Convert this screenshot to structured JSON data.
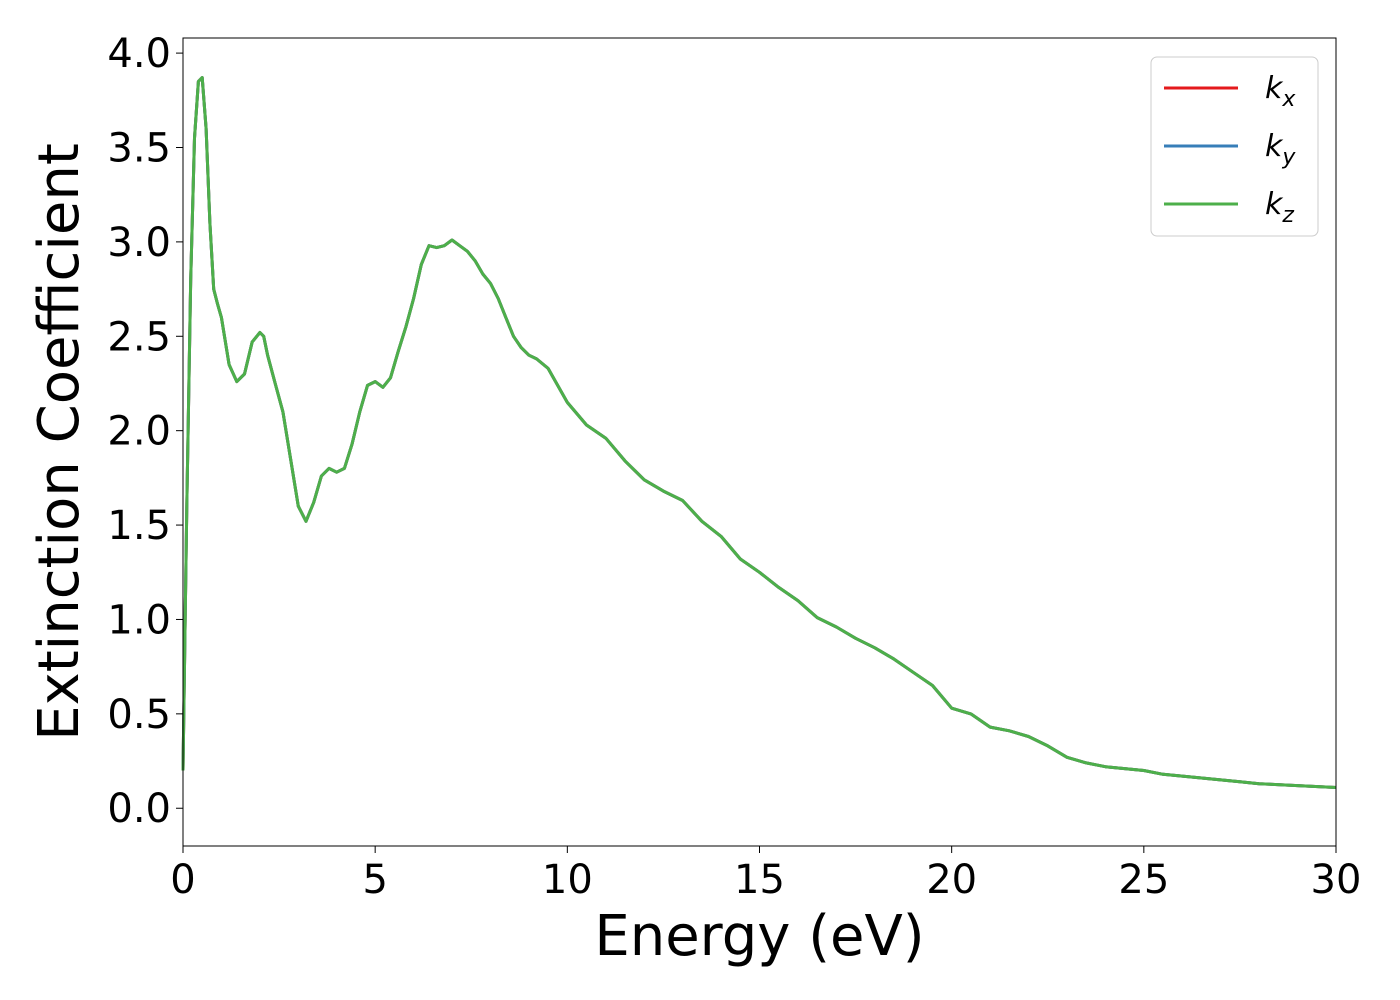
{
  "chart_data": {
    "type": "line",
    "title": "",
    "xlabel": "Energy (eV)",
    "ylabel": "Extinction Coefficient",
    "xlim": [
      0,
      30
    ],
    "ylim": [
      -0.2,
      4.08
    ],
    "xticks": [
      0,
      5,
      10,
      15,
      20,
      25,
      30
    ],
    "xtick_labels": [
      "0",
      "5",
      "10",
      "15",
      "20",
      "25",
      "30"
    ],
    "yticks": [
      0.0,
      0.5,
      1.0,
      1.5,
      2.0,
      2.5,
      3.0,
      3.5,
      4.0
    ],
    "ytick_labels": [
      "0.0",
      "0.5",
      "1.0",
      "1.5",
      "2.0",
      "2.5",
      "3.0",
      "3.5",
      "4.0"
    ],
    "grid": false,
    "legend_position": "top-right",
    "series": [
      {
        "name": "k",
        "subscript": "x",
        "color": "#e41a1c",
        "x": [
          0,
          0.1,
          0.2,
          0.3,
          0.4,
          0.5,
          0.6,
          0.7,
          0.8,
          0.9,
          1.0,
          1.2,
          1.4,
          1.6,
          1.8,
          2.0,
          2.1,
          2.2,
          2.4,
          2.6,
          2.8,
          3.0,
          3.2,
          3.4,
          3.6,
          3.8,
          4.0,
          4.2,
          4.4,
          4.6,
          4.8,
          5.0,
          5.2,
          5.4,
          5.6,
          5.8,
          6.0,
          6.2,
          6.4,
          6.6,
          6.8,
          7.0,
          7.2,
          7.4,
          7.6,
          7.8,
          8.0,
          8.2,
          8.4,
          8.6,
          8.8,
          9.0,
          9.2,
          9.5,
          10.0,
          10.5,
          11.0,
          11.5,
          12.0,
          12.5,
          13.0,
          13.5,
          14.0,
          14.5,
          15.0,
          15.5,
          16.0,
          16.5,
          17.0,
          17.5,
          18.0,
          18.5,
          19.0,
          19.5,
          20.0,
          20.5,
          21.0,
          21.5,
          22.0,
          22.5,
          23.0,
          23.5,
          24.0,
          24.5,
          25.0,
          25.5,
          26.0,
          26.5,
          27.0,
          27.5,
          28.0,
          29.0,
          30.0
        ],
        "y": [
          0.2,
          1.6,
          2.8,
          3.55,
          3.85,
          3.87,
          3.6,
          3.1,
          2.75,
          2.67,
          2.6,
          2.35,
          2.26,
          2.3,
          2.47,
          2.52,
          2.5,
          2.4,
          2.25,
          2.1,
          1.85,
          1.6,
          1.52,
          1.62,
          1.76,
          1.8,
          1.78,
          1.8,
          1.93,
          2.1,
          2.24,
          2.26,
          2.23,
          2.28,
          2.42,
          2.55,
          2.7,
          2.88,
          2.98,
          2.97,
          2.98,
          3.01,
          2.98,
          2.95,
          2.9,
          2.83,
          2.78,
          2.7,
          2.6,
          2.5,
          2.44,
          2.4,
          2.38,
          2.33,
          2.15,
          2.03,
          1.96,
          1.84,
          1.74,
          1.68,
          1.63,
          1.52,
          1.44,
          1.32,
          1.25,
          1.17,
          1.1,
          1.01,
          0.96,
          0.9,
          0.85,
          0.79,
          0.72,
          0.65,
          0.53,
          0.5,
          0.43,
          0.41,
          0.38,
          0.33,
          0.27,
          0.24,
          0.22,
          0.21,
          0.2,
          0.18,
          0.17,
          0.16,
          0.15,
          0.14,
          0.13,
          0.12,
          0.11
        ]
      },
      {
        "name": "k",
        "subscript": "y",
        "color": "#377eb8",
        "x": [
          0,
          0.1,
          0.2,
          0.3,
          0.4,
          0.5,
          0.6,
          0.7,
          0.8,
          0.9,
          1.0,
          1.2,
          1.4,
          1.6,
          1.8,
          2.0,
          2.1,
          2.2,
          2.4,
          2.6,
          2.8,
          3.0,
          3.2,
          3.4,
          3.6,
          3.8,
          4.0,
          4.2,
          4.4,
          4.6,
          4.8,
          5.0,
          5.2,
          5.4,
          5.6,
          5.8,
          6.0,
          6.2,
          6.4,
          6.6,
          6.8,
          7.0,
          7.2,
          7.4,
          7.6,
          7.8,
          8.0,
          8.2,
          8.4,
          8.6,
          8.8,
          9.0,
          9.2,
          9.5,
          10.0,
          10.5,
          11.0,
          11.5,
          12.0,
          12.5,
          13.0,
          13.5,
          14.0,
          14.5,
          15.0,
          15.5,
          16.0,
          16.5,
          17.0,
          17.5,
          18.0,
          18.5,
          19.0,
          19.5,
          20.0,
          20.5,
          21.0,
          21.5,
          22.0,
          22.5,
          23.0,
          23.5,
          24.0,
          24.5,
          25.0,
          25.5,
          26.0,
          26.5,
          27.0,
          27.5,
          28.0,
          29.0,
          30.0
        ],
        "y": [
          0.2,
          1.6,
          2.8,
          3.55,
          3.85,
          3.87,
          3.6,
          3.1,
          2.75,
          2.67,
          2.6,
          2.35,
          2.26,
          2.3,
          2.47,
          2.52,
          2.5,
          2.4,
          2.25,
          2.1,
          1.85,
          1.6,
          1.52,
          1.62,
          1.76,
          1.8,
          1.78,
          1.8,
          1.93,
          2.1,
          2.24,
          2.26,
          2.23,
          2.28,
          2.42,
          2.55,
          2.7,
          2.88,
          2.98,
          2.97,
          2.98,
          3.01,
          2.98,
          2.95,
          2.9,
          2.83,
          2.78,
          2.7,
          2.6,
          2.5,
          2.44,
          2.4,
          2.38,
          2.33,
          2.15,
          2.03,
          1.96,
          1.84,
          1.74,
          1.68,
          1.63,
          1.52,
          1.44,
          1.32,
          1.25,
          1.17,
          1.1,
          1.01,
          0.96,
          0.9,
          0.85,
          0.79,
          0.72,
          0.65,
          0.53,
          0.5,
          0.43,
          0.41,
          0.38,
          0.33,
          0.27,
          0.24,
          0.22,
          0.21,
          0.2,
          0.18,
          0.17,
          0.16,
          0.15,
          0.14,
          0.13,
          0.12,
          0.11
        ]
      },
      {
        "name": "k",
        "subscript": "z",
        "color": "#4daf4a",
        "x": [
          0,
          0.1,
          0.2,
          0.3,
          0.4,
          0.5,
          0.6,
          0.7,
          0.8,
          0.9,
          1.0,
          1.2,
          1.4,
          1.6,
          1.8,
          2.0,
          2.1,
          2.2,
          2.4,
          2.6,
          2.8,
          3.0,
          3.2,
          3.4,
          3.6,
          3.8,
          4.0,
          4.2,
          4.4,
          4.6,
          4.8,
          5.0,
          5.2,
          5.4,
          5.6,
          5.8,
          6.0,
          6.2,
          6.4,
          6.6,
          6.8,
          7.0,
          7.2,
          7.4,
          7.6,
          7.8,
          8.0,
          8.2,
          8.4,
          8.6,
          8.8,
          9.0,
          9.2,
          9.5,
          10.0,
          10.5,
          11.0,
          11.5,
          12.0,
          12.5,
          13.0,
          13.5,
          14.0,
          14.5,
          15.0,
          15.5,
          16.0,
          16.5,
          17.0,
          17.5,
          18.0,
          18.5,
          19.0,
          19.5,
          20.0,
          20.5,
          21.0,
          21.5,
          22.0,
          22.5,
          23.0,
          23.5,
          24.0,
          24.5,
          25.0,
          25.5,
          26.0,
          26.5,
          27.0,
          27.5,
          28.0,
          29.0,
          30.0
        ],
        "y": [
          0.2,
          1.6,
          2.8,
          3.55,
          3.85,
          3.87,
          3.6,
          3.1,
          2.75,
          2.67,
          2.6,
          2.35,
          2.26,
          2.3,
          2.47,
          2.52,
          2.5,
          2.4,
          2.25,
          2.1,
          1.85,
          1.6,
          1.52,
          1.62,
          1.76,
          1.8,
          1.78,
          1.8,
          1.93,
          2.1,
          2.24,
          2.26,
          2.23,
          2.28,
          2.42,
          2.55,
          2.7,
          2.88,
          2.98,
          2.97,
          2.98,
          3.01,
          2.98,
          2.95,
          2.9,
          2.83,
          2.78,
          2.7,
          2.6,
          2.5,
          2.44,
          2.4,
          2.38,
          2.33,
          2.15,
          2.03,
          1.96,
          1.84,
          1.74,
          1.68,
          1.63,
          1.52,
          1.44,
          1.32,
          1.25,
          1.17,
          1.1,
          1.01,
          0.96,
          0.9,
          0.85,
          0.79,
          0.72,
          0.65,
          0.53,
          0.5,
          0.43,
          0.41,
          0.38,
          0.33,
          0.27,
          0.24,
          0.22,
          0.21,
          0.2,
          0.18,
          0.17,
          0.16,
          0.15,
          0.14,
          0.13,
          0.12,
          0.11
        ]
      }
    ]
  }
}
